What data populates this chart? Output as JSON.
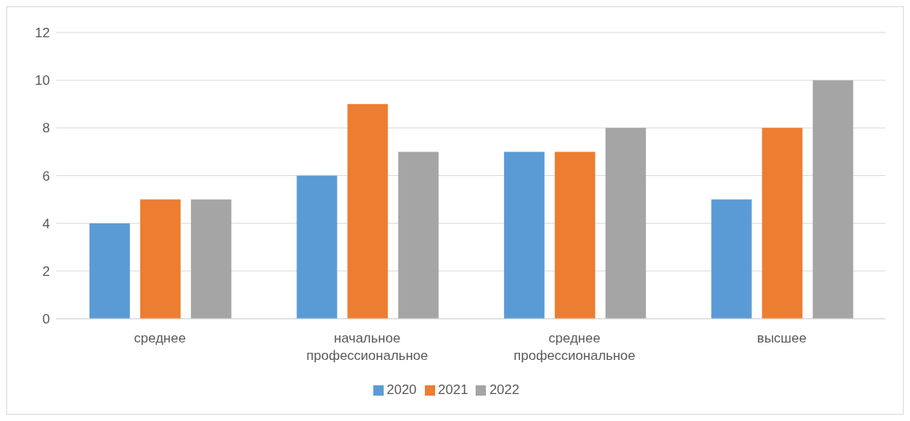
{
  "chart_data": {
    "type": "bar",
    "categories": [
      "среднее",
      "начальное профессиональное",
      "среднее профессиональное",
      "высшее"
    ],
    "series": [
      {
        "name": "2020",
        "color": "#5b9bd5",
        "values": [
          4,
          6,
          7,
          5
        ]
      },
      {
        "name": "2021",
        "color": "#ed7d31",
        "values": [
          5,
          9,
          7,
          8
        ]
      },
      {
        "name": "2022",
        "color": "#a5a5a5",
        "values": [
          5,
          7,
          8,
          10
        ]
      }
    ],
    "ylim": [
      0,
      12
    ],
    "yticks": [
      0,
      2,
      4,
      6,
      8,
      10,
      12
    ],
    "grid": "y",
    "legend": "bottom"
  }
}
